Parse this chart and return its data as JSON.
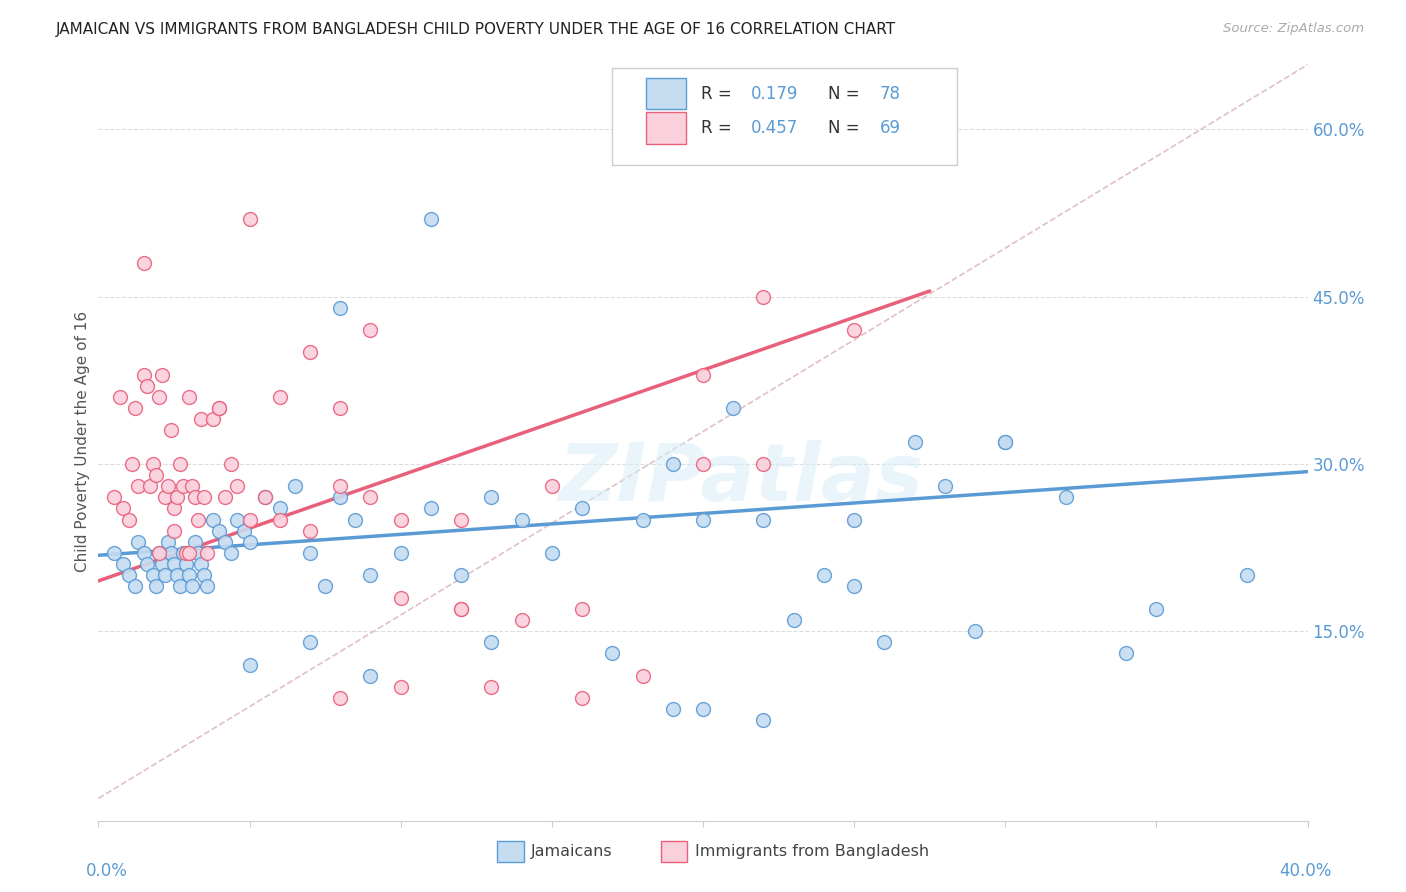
{
  "title": "JAMAICAN VS IMMIGRANTS FROM BANGLADESH CHILD POVERTY UNDER THE AGE OF 16 CORRELATION CHART",
  "source": "Source: ZipAtlas.com",
  "ylabel": "Child Poverty Under the Age of 16",
  "ytick_vals": [
    0.15,
    0.3,
    0.45,
    0.6
  ],
  "ytick_labels": [
    "15.0%",
    "30.0%",
    "45.0%",
    "60.0%"
  ],
  "xlim": [
    0.0,
    0.4
  ],
  "ylim": [
    -0.02,
    0.66
  ],
  "color_blue": "#5b9bd5",
  "color_pink": "#f4a0b5",
  "color_blue_face": "#c5dcf0",
  "color_pink_face": "#fad0dd",
  "watermark": "ZIPatlas",
  "blue_scatter_x": [
    0.005,
    0.008,
    0.01,
    0.012,
    0.013,
    0.015,
    0.016,
    0.018,
    0.019,
    0.02,
    0.021,
    0.022,
    0.023,
    0.024,
    0.025,
    0.026,
    0.027,
    0.028,
    0.029,
    0.03,
    0.031,
    0.032,
    0.033,
    0.034,
    0.035,
    0.036,
    0.038,
    0.04,
    0.042,
    0.044,
    0.046,
    0.048,
    0.05,
    0.055,
    0.06,
    0.065,
    0.07,
    0.075,
    0.08,
    0.085,
    0.09,
    0.1,
    0.11,
    0.12,
    0.13,
    0.14,
    0.15,
    0.16,
    0.18,
    0.19,
    0.2,
    0.21,
    0.22,
    0.24,
    0.25,
    0.26,
    0.28,
    0.3,
    0.32,
    0.34,
    0.38,
    0.08,
    0.11,
    0.2,
    0.25,
    0.27,
    0.3,
    0.19,
    0.22,
    0.07,
    0.05,
    0.09,
    0.13,
    0.17,
    0.23,
    0.29,
    0.35
  ],
  "blue_scatter_y": [
    0.22,
    0.21,
    0.2,
    0.19,
    0.23,
    0.22,
    0.21,
    0.2,
    0.19,
    0.22,
    0.21,
    0.2,
    0.23,
    0.22,
    0.21,
    0.2,
    0.19,
    0.22,
    0.21,
    0.2,
    0.19,
    0.23,
    0.22,
    0.21,
    0.2,
    0.19,
    0.25,
    0.24,
    0.23,
    0.22,
    0.25,
    0.24,
    0.23,
    0.27,
    0.26,
    0.28,
    0.22,
    0.19,
    0.27,
    0.25,
    0.2,
    0.22,
    0.26,
    0.2,
    0.27,
    0.25,
    0.22,
    0.26,
    0.25,
    0.3,
    0.25,
    0.35,
    0.25,
    0.2,
    0.25,
    0.14,
    0.28,
    0.32,
    0.27,
    0.13,
    0.2,
    0.44,
    0.52,
    0.08,
    0.19,
    0.32,
    0.32,
    0.08,
    0.07,
    0.14,
    0.12,
    0.11,
    0.14,
    0.13,
    0.16,
    0.15,
    0.17
  ],
  "pink_scatter_x": [
    0.005,
    0.007,
    0.008,
    0.01,
    0.011,
    0.012,
    0.013,
    0.015,
    0.016,
    0.017,
    0.018,
    0.019,
    0.02,
    0.021,
    0.022,
    0.023,
    0.024,
    0.025,
    0.026,
    0.027,
    0.028,
    0.029,
    0.03,
    0.031,
    0.032,
    0.033,
    0.034,
    0.035,
    0.036,
    0.038,
    0.04,
    0.042,
    0.044,
    0.046,
    0.05,
    0.055,
    0.06,
    0.07,
    0.08,
    0.09,
    0.1,
    0.12,
    0.14,
    0.16,
    0.18,
    0.2,
    0.22,
    0.25,
    0.05,
    0.015,
    0.02,
    0.025,
    0.03,
    0.04,
    0.06,
    0.08,
    0.1,
    0.12,
    0.15,
    0.2,
    0.22,
    0.07,
    0.09,
    0.13,
    0.16,
    0.12,
    0.1,
    0.08
  ],
  "pink_scatter_y": [
    0.27,
    0.36,
    0.26,
    0.25,
    0.3,
    0.35,
    0.28,
    0.38,
    0.37,
    0.28,
    0.3,
    0.29,
    0.36,
    0.38,
    0.27,
    0.28,
    0.33,
    0.26,
    0.27,
    0.3,
    0.28,
    0.22,
    0.36,
    0.28,
    0.27,
    0.25,
    0.34,
    0.27,
    0.22,
    0.34,
    0.35,
    0.27,
    0.3,
    0.28,
    0.25,
    0.27,
    0.25,
    0.24,
    0.35,
    0.27,
    0.18,
    0.17,
    0.16,
    0.17,
    0.11,
    0.3,
    0.45,
    0.42,
    0.52,
    0.48,
    0.22,
    0.24,
    0.22,
    0.35,
    0.36,
    0.28,
    0.25,
    0.25,
    0.28,
    0.38,
    0.3,
    0.4,
    0.42,
    0.1,
    0.09,
    0.17,
    0.1,
    0.09
  ],
  "blue_line_x": [
    0.0,
    0.4
  ],
  "blue_line_y": [
    0.218,
    0.293
  ],
  "pink_line_x": [
    0.0,
    0.275
  ],
  "pink_line_y": [
    0.195,
    0.455
  ],
  "dashed_line_x": [
    0.0,
    0.4
  ],
  "dashed_line_y": [
    0.0,
    0.658
  ]
}
